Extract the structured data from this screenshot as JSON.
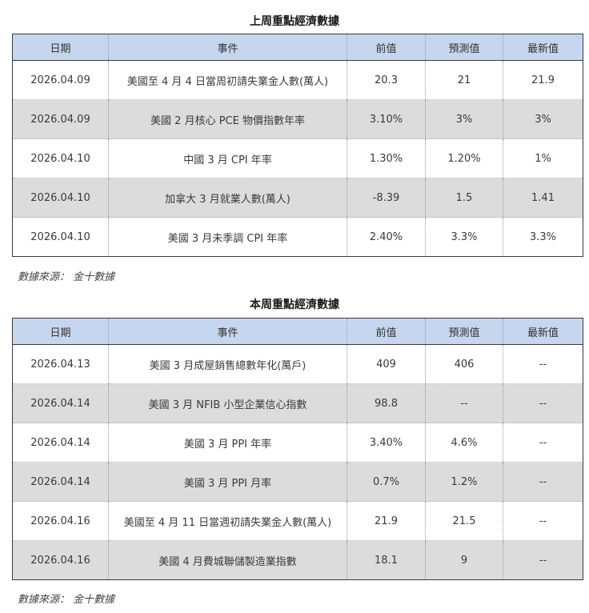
{
  "last_week": {
    "title": "上周重點經濟數據",
    "headers": [
      "日期",
      "事件",
      "前值",
      "預測值",
      "最新值"
    ],
    "rows": [
      [
        "2026.04.09",
        "美國至 4 月 4 日當周初請失業金人數(萬人)",
        "20.3",
        "21",
        "21.9"
      ],
      [
        "2026.04.09",
        "美國 2 月核心 PCE 物價指數年率",
        "3.10%",
        "3%",
        "3%"
      ],
      [
        "2026.04.10",
        "中國 3 月 CPI 年率",
        "1.30%",
        "1.20%",
        "1%"
      ],
      [
        "2026.04.10",
        "加拿大 3 月就業人數(萬人)",
        "-8.39",
        "1.5",
        "1.41"
      ],
      [
        "2026.04.10",
        "美國 3 月未季調 CPI 年率",
        "2.40%",
        "3.3%",
        "3.3%"
      ]
    ],
    "source": "數據來源： 金十數據"
  },
  "this_week": {
    "title": "本周重點經濟數據",
    "headers": [
      "日期",
      "事件",
      "前值",
      "預測值",
      "最新值"
    ],
    "rows": [
      [
        "2026.04.13",
        "美國 3 月成屋銷售總數年化(萬戶)",
        "409",
        "406",
        "--"
      ],
      [
        "2026.04.14",
        "美國 3 月 NFIB 小型企業信心指數",
        "98.8",
        "--",
        "--"
      ],
      [
        "2026.04.14",
        "美國 3 月 PPI 年率",
        "3.40%",
        "4.6%",
        "--"
      ],
      [
        "2026.04.14",
        "美國 3 月 PPI 月率",
        "0.7%",
        "1.2%",
        "--"
      ],
      [
        "2026.04.16",
        "美國至 4 月 11 日當週初請失業金人數(萬人)",
        "21.9",
        "21.5",
        "--"
      ],
      [
        "2026.04.16",
        "美國 4 月費城聯儲製造業指數",
        "18.1",
        "9",
        "--"
      ]
    ],
    "source": "數據來源： 金十數據"
  }
}
